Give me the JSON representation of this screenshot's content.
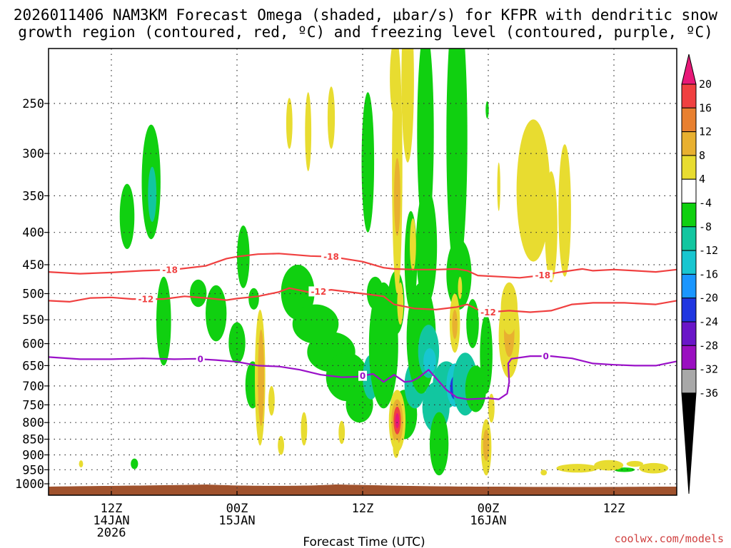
{
  "title_line1": "2026011406 NAM3KM Forecast Omega (shaded, μbar/s) for KFPR with dendritic snow",
  "title_line2": "growth region (contoured, red, ºC) and freezing level (contoured, purple, ºC)",
  "credit": "coolwx.com/models",
  "chart_data": {
    "type": "heatmap",
    "title": "2026011406 NAM3KM Forecast Omega (shaded, μbar/s) for KFPR with dendritic snow growth region (contoured, red, ºC) and freezing level (contoured, purple, ºC)",
    "xlabel": "Forecast Time (UTC)",
    "ylabel": "",
    "y_scale": "log-pressure (inverted)",
    "xlim_hours_from_2026011406": [
      0,
      60
    ],
    "x_ticks": [
      {
        "hour": 6,
        "labels": [
          "12Z",
          "14JAN",
          "2026"
        ]
      },
      {
        "hour": 18,
        "labels": [
          "00Z",
          "15JAN"
        ]
      },
      {
        "hour": 30,
        "labels": [
          "12Z",
          ""
        ]
      },
      {
        "hour": 42,
        "labels": [
          "00Z",
          "16JAN"
        ]
      },
      {
        "hour": 54,
        "labels": [
          "12Z",
          ""
        ]
      }
    ],
    "y_ticks_hpa": [
      250,
      300,
      350,
      400,
      450,
      500,
      550,
      600,
      650,
      700,
      750,
      800,
      850,
      900,
      950,
      1000
    ],
    "ylim_hpa": [
      200,
      1030
    ],
    "grid": true,
    "colorbar": {
      "levels": [
        -36,
        -32,
        -28,
        -24,
        -20,
        -16,
        -12,
        -8,
        -4,
        4,
        8,
        12,
        16,
        20
      ],
      "colors": [
        "#000000",
        "#a8a8a8",
        "#9a0fc0",
        "#6a16c8",
        "#2036e0",
        "#1a96ff",
        "#18c6d0",
        "#12c6a0",
        "#10d010",
        "#ffffff",
        "#e8dc30",
        "#e8b030",
        "#e88030",
        "#f04040",
        "#e81878"
      ]
    },
    "omega_cells": [
      {
        "h": 7.5,
        "p": 380,
        "dh": 0.7,
        "dp": 45,
        "v": -6
      },
      {
        "h": 9.8,
        "p": 340,
        "dh": 0.9,
        "dp": 70,
        "v": -6
      },
      {
        "h": 9.9,
        "p": 350,
        "dh": 0.4,
        "dp": 35,
        "v": -12
      },
      {
        "h": 11.0,
        "p": 560,
        "dh": 0.7,
        "dp": 90,
        "v": -6
      },
      {
        "h": 14.3,
        "p": 500,
        "dh": 0.8,
        "dp": 25,
        "v": -6
      },
      {
        "h": 16.0,
        "p": 540,
        "dh": 1.0,
        "dp": 55,
        "v": -6
      },
      {
        "h": 18.0,
        "p": 600,
        "dh": 0.8,
        "dp": 45,
        "v": -6
      },
      {
        "h": 18.6,
        "p": 440,
        "dh": 0.6,
        "dp": 50,
        "v": -6
      },
      {
        "h": 19.5,
        "p": 700,
        "dh": 0.7,
        "dp": 60,
        "v": -6
      },
      {
        "h": 19.6,
        "p": 510,
        "dh": 0.5,
        "dp": 20,
        "v": -6
      },
      {
        "h": 23.8,
        "p": 500,
        "dh": 1.6,
        "dp": 50,
        "v": -6
      },
      {
        "h": 25.5,
        "p": 560,
        "dh": 2.2,
        "dp": 40,
        "v": -6
      },
      {
        "h": 27.0,
        "p": 620,
        "dh": 2.3,
        "dp": 45,
        "v": -6
      },
      {
        "h": 28.5,
        "p": 680,
        "dh": 2.0,
        "dp": 60,
        "v": -6
      },
      {
        "h": 29.7,
        "p": 750,
        "dh": 1.3,
        "dp": 50,
        "v": -6
      },
      {
        "h": 30.5,
        "p": 320,
        "dh": 0.6,
        "dp": 80,
        "v": -6
      },
      {
        "h": 30.8,
        "p": 680,
        "dh": 0.8,
        "dp": 55,
        "v": -12
      },
      {
        "h": 31.2,
        "p": 500,
        "dh": 0.8,
        "dp": 30,
        "v": -6
      },
      {
        "h": 32.0,
        "p": 620,
        "dh": 1.4,
        "dp": 140,
        "v": -6
      },
      {
        "h": 33.2,
        "p": 520,
        "dh": 0.8,
        "dp": 60,
        "v": -6
      },
      {
        "h": 34.0,
        "p": 780,
        "dh": 1.2,
        "dp": 70,
        "v": -6
      },
      {
        "h": 34.6,
        "p": 450,
        "dh": 0.6,
        "dp": 80,
        "v": -6
      },
      {
        "h": 35.0,
        "p": 700,
        "dh": 1.0,
        "dp": 60,
        "v": -12
      },
      {
        "h": 35.6,
        "p": 600,
        "dh": 1.4,
        "dp": 120,
        "v": -6
      },
      {
        "h": 36.0,
        "p": 300,
        "dh": 0.8,
        "dp": 110,
        "v": -6
      },
      {
        "h": 36.1,
        "p": 430,
        "dh": 1.0,
        "dp": 90,
        "v": -6
      },
      {
        "h": 36.3,
        "p": 620,
        "dh": 1.0,
        "dp": 60,
        "v": -12
      },
      {
        "h": 36.4,
        "p": 640,
        "dh": 0.6,
        "dp": 30,
        "v": -16
      },
      {
        "h": 37.0,
        "p": 760,
        "dh": 1.3,
        "dp": 70,
        "v": -12
      },
      {
        "h": 37.3,
        "p": 870,
        "dh": 0.9,
        "dp": 100,
        "v": -6
      },
      {
        "h": 38.0,
        "p": 700,
        "dh": 1.3,
        "dp": 60,
        "v": -12
      },
      {
        "h": 38.8,
        "p": 700,
        "dh": 0.8,
        "dp": 55,
        "v": -16
      },
      {
        "h": 38.8,
        "p": 705,
        "dh": 0.45,
        "dp": 30,
        "v": -24
      },
      {
        "h": 39.0,
        "p": 320,
        "dh": 1.0,
        "dp": 150,
        "v": -6
      },
      {
        "h": 39.2,
        "p": 470,
        "dh": 1.2,
        "dp": 60,
        "v": -6
      },
      {
        "h": 39.8,
        "p": 700,
        "dh": 1.2,
        "dp": 80,
        "v": -12
      },
      {
        "h": 40.5,
        "p": 560,
        "dh": 0.6,
        "dp": 50,
        "v": -6
      },
      {
        "h": 40.8,
        "p": 710,
        "dh": 1.0,
        "dp": 60,
        "v": -6
      },
      {
        "h": 41.8,
        "p": 630,
        "dh": 0.6,
        "dp": 90,
        "v": -6
      },
      {
        "h": 41.9,
        "p": 256,
        "dh": 0.15,
        "dp": 8,
        "v": -6
      },
      {
        "h": 55.0,
        "p": 950,
        "dh": 1.0,
        "dp": 8,
        "v": -6
      },
      {
        "h": 8.2,
        "p": 930,
        "dh": 0.35,
        "dp": 18,
        "v": -6
      },
      {
        "h": 3.1,
        "p": 930,
        "dh": 0.2,
        "dp": 12,
        "v": 6
      },
      {
        "h": 23.0,
        "p": 270,
        "dh": 0.3,
        "dp": 25,
        "v": 6
      },
      {
        "h": 24.8,
        "p": 280,
        "dh": 0.3,
        "dp": 40,
        "v": 6
      },
      {
        "h": 27.0,
        "p": 265,
        "dh": 0.35,
        "dp": 30,
        "v": 6
      },
      {
        "h": 33.0,
        "p": 230,
        "dh": 0.4,
        "dp": 30,
        "v": 6
      },
      {
        "h": 33.3,
        "p": 350,
        "dh": 0.5,
        "dp": 150,
        "v": 6
      },
      {
        "h": 33.3,
        "p": 355,
        "dh": 0.3,
        "dp": 50,
        "v": 10
      },
      {
        "h": 33.6,
        "p": 520,
        "dh": 0.3,
        "dp": 40,
        "v": 6
      },
      {
        "h": 34.3,
        "p": 240,
        "dh": 0.6,
        "dp": 70,
        "v": 6
      },
      {
        "h": 34.8,
        "p": 420,
        "dh": 0.3,
        "dp": 40,
        "v": 6
      },
      {
        "h": 20.2,
        "p": 700,
        "dh": 0.5,
        "dp": 170,
        "v": 6
      },
      {
        "h": 20.3,
        "p": 690,
        "dh": 0.3,
        "dp": 120,
        "v": 10
      },
      {
        "h": 21.3,
        "p": 740,
        "dh": 0.3,
        "dp": 40,
        "v": 6
      },
      {
        "h": 22.2,
        "p": 870,
        "dh": 0.3,
        "dp": 30,
        "v": 6
      },
      {
        "h": 24.4,
        "p": 820,
        "dh": 0.3,
        "dp": 50,
        "v": 6
      },
      {
        "h": 28.0,
        "p": 830,
        "dh": 0.3,
        "dp": 35,
        "v": 6
      },
      {
        "h": 33.3,
        "p": 800,
        "dh": 0.8,
        "dp": 90,
        "v": 6
      },
      {
        "h": 33.3,
        "p": 800,
        "dh": 0.55,
        "dp": 65,
        "v": 10
      },
      {
        "h": 33.3,
        "p": 795,
        "dh": 0.35,
        "dp": 40,
        "v": 16
      },
      {
        "h": 33.3,
        "p": 795,
        "dh": 0.2,
        "dp": 22,
        "v": 22
      },
      {
        "h": 33.2,
        "p": 880,
        "dh": 0.3,
        "dp": 30,
        "v": 6
      },
      {
        "h": 38.8,
        "p": 560,
        "dh": 0.5,
        "dp": 60,
        "v": 6
      },
      {
        "h": 38.8,
        "p": 560,
        "dh": 0.25,
        "dp": 30,
        "v": 10
      },
      {
        "h": 39.3,
        "p": 490,
        "dh": 0.2,
        "dp": 20,
        "v": 6
      },
      {
        "h": 41.8,
        "p": 880,
        "dh": 0.5,
        "dp": 90,
        "v": 6
      },
      {
        "h": 41.8,
        "p": 870,
        "dh": 0.3,
        "dp": 50,
        "v": 10
      },
      {
        "h": 42.3,
        "p": 760,
        "dh": 0.3,
        "dp": 40,
        "v": 6
      },
      {
        "h": 43.0,
        "p": 340,
        "dh": 0.15,
        "dp": 30,
        "v": 6
      },
      {
        "h": 44.0,
        "p": 590,
        "dh": 1.0,
        "dp": 90,
        "v": 6
      },
      {
        "h": 44.0,
        "p": 580,
        "dh": 0.5,
        "dp": 50,
        "v": 10
      },
      {
        "h": 44.0,
        "p": 530,
        "dh": 0.8,
        "dp": 50,
        "v": 6
      },
      {
        "h": 46.3,
        "p": 355,
        "dh": 1.6,
        "dp": 90,
        "v": 6
      },
      {
        "h": 48.0,
        "p": 400,
        "dh": 0.6,
        "dp": 80,
        "v": 6
      },
      {
        "h": 49.3,
        "p": 380,
        "dh": 0.6,
        "dp": 90,
        "v": 6
      },
      {
        "h": 47.3,
        "p": 960,
        "dh": 0.3,
        "dp": 10,
        "v": 6
      },
      {
        "h": 50.5,
        "p": 945,
        "dh": 2.0,
        "dp": 15,
        "v": 6
      },
      {
        "h": 53.5,
        "p": 935,
        "dh": 1.4,
        "dp": 18,
        "v": 6
      },
      {
        "h": 57.8,
        "p": 945,
        "dh": 1.4,
        "dp": 18,
        "v": 6
      },
      {
        "h": 56.0,
        "p": 930,
        "dh": 0.8,
        "dp": 10,
        "v": 6
      }
    ],
    "contours": [
      {
        "name": "-18",
        "color": "#f04040",
        "label": "-18",
        "label_h": [
          11.6,
          27.0,
          47.2
        ],
        "points": [
          [
            0,
            462
          ],
          [
            3,
            465
          ],
          [
            6,
            463
          ],
          [
            9,
            460
          ],
          [
            12,
            458
          ],
          [
            15,
            452
          ],
          [
            17,
            440
          ],
          [
            18,
            437
          ],
          [
            20,
            433
          ],
          [
            22,
            432
          ],
          [
            25,
            436
          ],
          [
            27,
            437
          ],
          [
            30,
            445
          ],
          [
            32,
            455
          ],
          [
            33,
            457
          ],
          [
            35,
            458
          ],
          [
            37,
            458
          ],
          [
            39,
            457
          ],
          [
            40,
            460
          ],
          [
            41,
            468
          ],
          [
            43,
            470
          ],
          [
            45,
            472
          ],
          [
            47,
            468
          ],
          [
            49,
            462
          ],
          [
            51,
            457
          ],
          [
            52,
            460
          ],
          [
            54,
            458
          ],
          [
            56,
            460
          ],
          [
            58,
            462
          ],
          [
            60,
            458
          ]
        ]
      },
      {
        "name": "-12",
        "color": "#f04040",
        "label": "-12",
        "label_h": [
          9.3,
          25.8,
          42.0
        ],
        "points": [
          [
            0,
            513
          ],
          [
            2,
            515
          ],
          [
            4,
            508
          ],
          [
            6,
            507
          ],
          [
            8,
            510
          ],
          [
            11,
            510
          ],
          [
            13,
            505
          ],
          [
            15,
            508
          ],
          [
            17,
            512
          ],
          [
            18,
            509
          ],
          [
            20,
            505
          ],
          [
            22,
            497
          ],
          [
            23,
            490
          ],
          [
            25,
            498
          ],
          [
            27,
            493
          ],
          [
            30,
            500
          ],
          [
            32,
            505
          ],
          [
            33,
            520
          ],
          [
            35,
            528
          ],
          [
            37,
            530
          ],
          [
            39,
            525
          ],
          [
            40,
            520
          ],
          [
            41,
            530
          ],
          [
            42,
            535
          ],
          [
            44,
            532
          ],
          [
            46,
            535
          ],
          [
            48,
            532
          ],
          [
            50,
            520
          ],
          [
            52,
            517
          ],
          [
            55,
            517
          ],
          [
            58,
            520
          ],
          [
            60,
            513
          ]
        ]
      },
      {
        "name": "0",
        "color": "#9a10c8",
        "label": "0",
        "label_h": [
          14.5,
          30.0,
          47.5
        ],
        "points": [
          [
            0,
            630
          ],
          [
            3,
            635
          ],
          [
            6,
            635
          ],
          [
            9,
            633
          ],
          [
            12,
            635
          ],
          [
            14,
            634
          ],
          [
            16,
            637
          ],
          [
            18,
            641
          ],
          [
            20,
            650
          ],
          [
            22,
            652
          ],
          [
            24,
            660
          ],
          [
            26,
            672
          ],
          [
            28,
            678
          ],
          [
            29.5,
            677
          ],
          [
            31,
            670
          ],
          [
            32,
            690
          ],
          [
            33,
            672
          ],
          [
            34,
            690
          ],
          [
            34.7,
            688
          ],
          [
            35.3,
            680
          ],
          [
            36.3,
            660
          ],
          [
            38,
            710
          ],
          [
            39,
            730
          ],
          [
            40,
            735
          ],
          [
            42,
            732
          ],
          [
            43,
            735
          ],
          [
            43.8,
            720
          ],
          [
            44.0,
            690
          ],
          [
            43.9,
            645
          ],
          [
            44.2,
            634
          ],
          [
            46,
            628
          ],
          [
            48,
            628
          ],
          [
            50,
            633
          ],
          [
            52,
            645
          ],
          [
            54,
            648
          ],
          [
            56,
            650
          ],
          [
            58,
            650
          ],
          [
            60,
            640
          ]
        ]
      }
    ],
    "ground": "brown terrain band at bottom (~1000+ hPa)"
  }
}
